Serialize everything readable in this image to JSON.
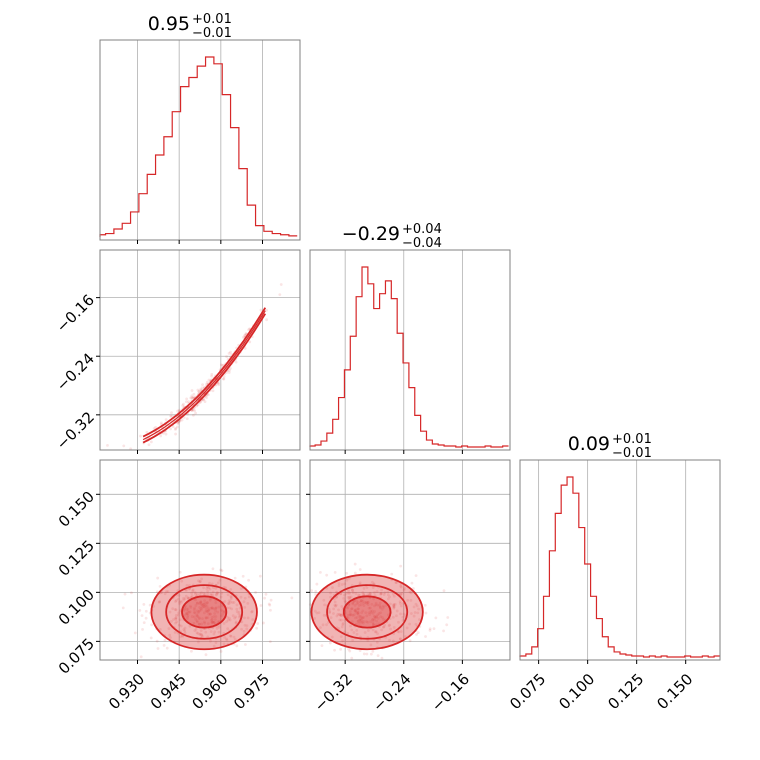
{
  "chart_data": {
    "type": "corner",
    "color": "#d62728",
    "grid": true,
    "parameters": [
      {
        "id": "p0",
        "range": [
          0.9165,
          0.9885
        ],
        "ticks": [
          0.93,
          0.945,
          0.96,
          0.975
        ],
        "tick_labels": [
          "0.930",
          "0.945",
          "0.960",
          "0.975"
        ],
        "title": {
          "median": "0.95",
          "plus": "+0.01",
          "minus": "−0.01"
        },
        "median": 0.954,
        "plus": 0.01,
        "minus": 0.01,
        "hist_x": [
          0.917,
          0.92,
          0.923,
          0.926,
          0.929,
          0.932,
          0.935,
          0.938,
          0.941,
          0.944,
          0.947,
          0.95,
          0.953,
          0.956,
          0.959,
          0.962,
          0.965,
          0.968,
          0.971,
          0.974,
          0.977,
          0.98,
          0.983,
          0.986
        ],
        "hist_y": [
          2,
          3,
          7,
          12,
          22,
          38,
          55,
          72,
          88,
          110,
          132,
          140,
          150,
          158,
          152,
          125,
          96,
          60,
          28,
          10,
          5,
          3,
          2,
          1
        ]
      },
      {
        "id": "p1",
        "range": [
          -0.368,
          -0.095
        ],
        "ticks": [
          -0.32,
          -0.24,
          -0.16
        ],
        "tick_labels": [
          "−0.32",
          "−0.24",
          "−0.16"
        ],
        "title": {
          "median": "−0.29",
          "plus": "+0.04",
          "minus": "−0.04"
        },
        "median": -0.29,
        "plus": 0.04,
        "minus": 0.04,
        "hist_x": [
          -0.365,
          -0.357,
          -0.349,
          -0.341,
          -0.333,
          -0.325,
          -0.317,
          -0.309,
          -0.301,
          -0.293,
          -0.285,
          -0.277,
          -0.269,
          -0.261,
          -0.253,
          -0.245,
          -0.237,
          -0.229,
          -0.221,
          -0.213,
          -0.205,
          -0.197,
          -0.189,
          -0.181,
          -0.173,
          -0.165,
          -0.157,
          -0.149,
          -0.141,
          -0.133,
          -0.125,
          -0.117,
          -0.109,
          -0.101
        ],
        "hist_y": [
          1,
          2,
          6,
          14,
          28,
          50,
          78,
          112,
          152,
          182,
          165,
          140,
          155,
          168,
          150,
          115,
          85,
          60,
          32,
          16,
          7,
          3,
          2,
          1,
          1,
          0,
          1,
          0,
          0,
          0,
          1,
          0,
          0,
          1
        ]
      },
      {
        "id": "p2",
        "range": [
          0.0655,
          0.1675
        ],
        "ticks": [
          0.075,
          0.1,
          0.125,
          0.15
        ],
        "tick_labels": [
          "0.075",
          "0.100",
          "0.125",
          "0.150"
        ],
        "title": {
          "median": "0.09",
          "plus": "+0.01",
          "minus": "−0.01"
        },
        "median": 0.09,
        "plus": 0.01,
        "minus": 0.01,
        "hist_x": [
          0.067,
          0.07,
          0.073,
          0.076,
          0.079,
          0.082,
          0.085,
          0.088,
          0.091,
          0.094,
          0.097,
          0.1,
          0.103,
          0.106,
          0.109,
          0.112,
          0.115,
          0.118,
          0.121,
          0.124,
          0.127,
          0.13,
          0.133,
          0.136,
          0.139,
          0.142,
          0.145,
          0.148,
          0.151,
          0.154,
          0.157,
          0.16,
          0.163,
          0.166
        ],
        "hist_y": [
          1,
          3,
          10,
          28,
          60,
          105,
          142,
          170,
          178,
          162,
          128,
          92,
          60,
          38,
          20,
          10,
          5,
          3,
          2,
          1,
          1,
          0,
          1,
          0,
          1,
          0,
          0,
          0,
          1,
          0,
          0,
          1,
          0,
          1
        ]
      }
    ],
    "pairs": [
      {
        "x": "p0",
        "y": "p1",
        "correlation": "tight-positive"
      },
      {
        "x": "p0",
        "y": "p2",
        "correlation": "weak"
      },
      {
        "x": "p1",
        "y": "p2",
        "correlation": "weak"
      }
    ]
  }
}
